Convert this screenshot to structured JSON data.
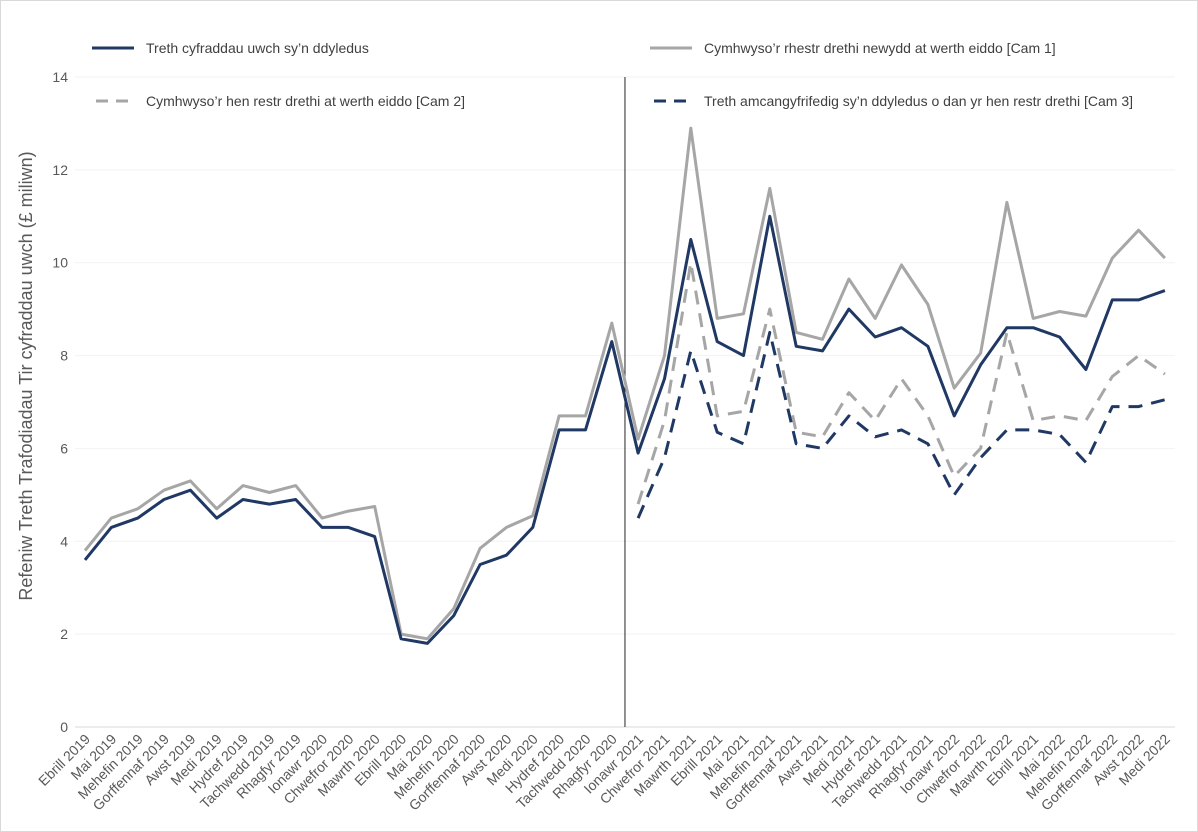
{
  "chart_data": {
    "type": "line",
    "title": "",
    "xlabel": "",
    "ylabel": "Refeniw Treth Trafodiadau Tir cyfraddau uwch (£ miliwn)",
    "ylim": [
      0,
      14
    ],
    "yticks": [
      0,
      2,
      4,
      6,
      8,
      10,
      12,
      14
    ],
    "grid": "horizontal",
    "legend_position": "top",
    "divider_after": "Rhagfyr 2020",
    "categories": [
      "Ebrill 2019",
      "Mai 2019",
      "Mehefin 2019",
      "Gorffennaf 2019",
      "Awst 2019",
      "Medi 2019",
      "Hydref 2019",
      "Tachwedd 2019",
      "Rhagfyr 2019",
      "Ionawr 2020",
      "Chwefror 2020",
      "Mawrth 2020",
      "Ebrill 2020",
      "Mai 2020",
      "Mehefin 2020",
      "Gorffennaf 2020",
      "Awst 2020",
      "Medi 2020",
      "Hydref 2020",
      "Tachwedd 2020",
      "Rhagfyr 2020",
      "Ionawr 2021",
      "Chwefror 2021",
      "Mawrth 2021",
      "Ebrill 2021",
      "Mai 2021",
      "Mehefin 2021",
      "Gorffennaf 2021",
      "Awst 2021",
      "Medi 2021",
      "Hydref 2021",
      "Tachwedd 2021",
      "Rhagfyr 2021",
      "Ionawr 2022",
      "Chwefror 2022",
      "Mawrth 2022",
      "Ebrill 2021",
      "Mai 2022",
      "Mehefin 2022",
      "Gorffennaf 2022",
      "Awst 2022",
      "Medi 2022"
    ],
    "series": [
      {
        "name": "Treth cyfraddau uwch sy’n ddyledus",
        "color": "#1f3864",
        "dash": "solid",
        "values": [
          3.6,
          4.3,
          4.5,
          4.9,
          5.1,
          4.5,
          4.9,
          4.8,
          4.9,
          4.3,
          4.3,
          4.1,
          1.9,
          1.8,
          2.4,
          3.5,
          3.7,
          4.3,
          6.4,
          6.4,
          8.3,
          5.9,
          7.5,
          10.5,
          8.3,
          8.0,
          11.0,
          8.2,
          8.1,
          9.0,
          8.4,
          8.6,
          8.2,
          6.7,
          7.8,
          8.6,
          8.6,
          8.4,
          7.7,
          9.2,
          9.2,
          9.4
        ]
      },
      {
        "name": "Cymhwyso’r rhestr drethi newydd at werth eiddo [Cam 1]",
        "color": "#a6a6a6",
        "dash": "solid",
        "values": [
          3.8,
          4.5,
          4.7,
          5.1,
          5.3,
          4.7,
          5.2,
          5.05,
          5.2,
          4.5,
          4.65,
          4.75,
          2.0,
          1.9,
          2.55,
          3.85,
          4.3,
          4.55,
          6.7,
          6.7,
          8.7,
          6.2,
          8.0,
          12.9,
          8.8,
          8.9,
          11.6,
          8.5,
          8.35,
          9.65,
          8.8,
          9.95,
          9.1,
          7.3,
          8.05,
          11.3,
          8.8,
          8.95,
          8.85,
          10.1,
          10.7,
          10.1
        ]
      },
      {
        "name": "Cymhwyso’r hen restr drethi at werth eiddo [Cam 2]",
        "color": "#a6a6a6",
        "dash": "dashed",
        "values": [
          null,
          null,
          null,
          null,
          null,
          null,
          null,
          null,
          null,
          null,
          null,
          null,
          null,
          null,
          null,
          null,
          null,
          null,
          null,
          null,
          null,
          4.8,
          6.6,
          10.0,
          6.7,
          6.8,
          9.0,
          6.35,
          6.25,
          7.2,
          6.6,
          7.5,
          6.7,
          5.4,
          6.0,
          8.5,
          6.6,
          6.7,
          6.6,
          7.55,
          8.0,
          7.6
        ]
      },
      {
        "name": "Treth amcangyfrifedig sy’n ddyledus o dan yr hen restr drethi [Cam 3]",
        "color": "#1f3864",
        "dash": "dashed",
        "values": [
          null,
          null,
          null,
          null,
          null,
          null,
          null,
          null,
          null,
          null,
          null,
          null,
          null,
          null,
          null,
          null,
          null,
          null,
          null,
          null,
          null,
          4.5,
          5.8,
          8.1,
          6.35,
          6.1,
          8.5,
          6.1,
          6.0,
          6.7,
          6.25,
          6.4,
          6.1,
          5.0,
          5.8,
          6.4,
          6.4,
          6.3,
          5.7,
          6.9,
          6.9,
          7.05
        ]
      }
    ]
  }
}
